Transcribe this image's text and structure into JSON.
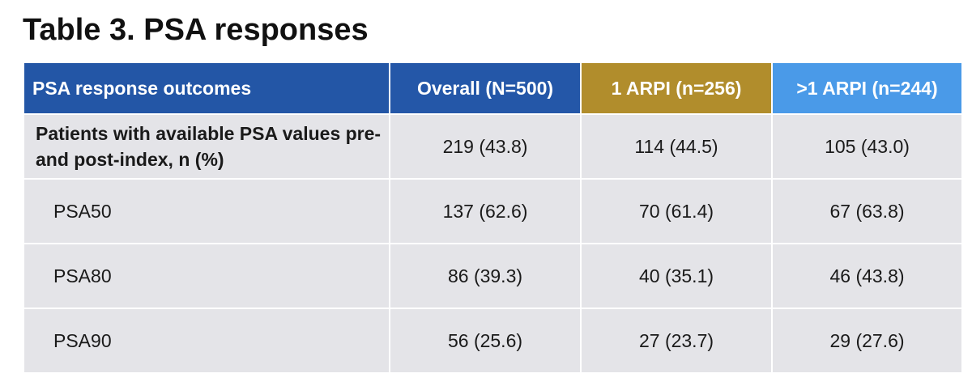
{
  "title": "Table 3. PSA responses",
  "colors": {
    "header_col0": "#2356a6",
    "header_overall": "#2457a8",
    "header_1arpi": "#b18d2c",
    "header_gt1arpi": "#4a9ae8",
    "row_bg": "#e4e4e8"
  },
  "table": {
    "headers": [
      "PSA response outcomes",
      "Overall (N=500)",
      "1 ARPI (n=256)",
      ">1 ARPI (n=244)"
    ],
    "rows": [
      {
        "label": "Patients with available PSA values pre- and post-index, n (%)",
        "overall": "219 (43.8)",
        "arpi1": "114 (44.5)",
        "arpi_gt1": "105 (43.0)"
      },
      {
        "label": "PSA50",
        "overall": "137 (62.6)",
        "arpi1": "70 (61.4)",
        "arpi_gt1": "67 (63.8)"
      },
      {
        "label": "PSA80",
        "overall": "86 (39.3)",
        "arpi1": "40 (35.1)",
        "arpi_gt1": "46 (43.8)"
      },
      {
        "label": "PSA90",
        "overall": "56 (25.6)",
        "arpi1": "27 (23.7)",
        "arpi_gt1": "29 (27.6)"
      }
    ]
  }
}
